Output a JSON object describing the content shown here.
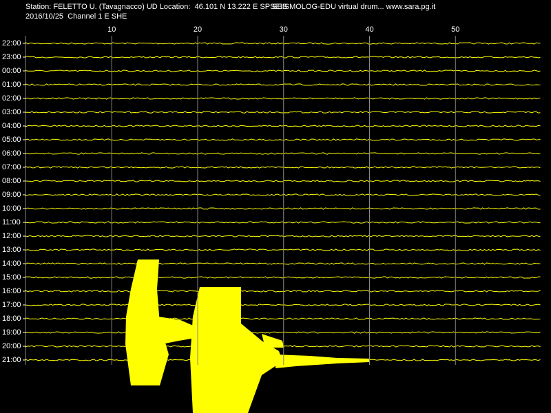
{
  "chart_data": {
    "type": "seismogram",
    "title": "Station: FELETTO U. (Tavagnacco) UD Location:  46.101 N 13.222 E SPSEIS",
    "annotation": "SEISMOLOG-EDU virtual drum... www.sara.pg.it",
    "subtitle": "2016/10/25  Channel 1 E SHE",
    "xlim": [
      0,
      60
    ],
    "xticks": [
      10,
      20,
      30,
      40,
      50
    ],
    "categories": [
      "22:00",
      "23:00",
      "00:00",
      "01:00",
      "02:00",
      "03:00",
      "04:00",
      "05:00",
      "06:00",
      "07:00",
      "08:00",
      "09:00",
      "10:00",
      "11:00",
      "12:00",
      "13:00",
      "14:00",
      "15:00",
      "16:00",
      "17:00",
      "18:00",
      "19:00",
      "20:00",
      "21:00"
    ],
    "color": "#ffff00",
    "grid": true
  }
}
